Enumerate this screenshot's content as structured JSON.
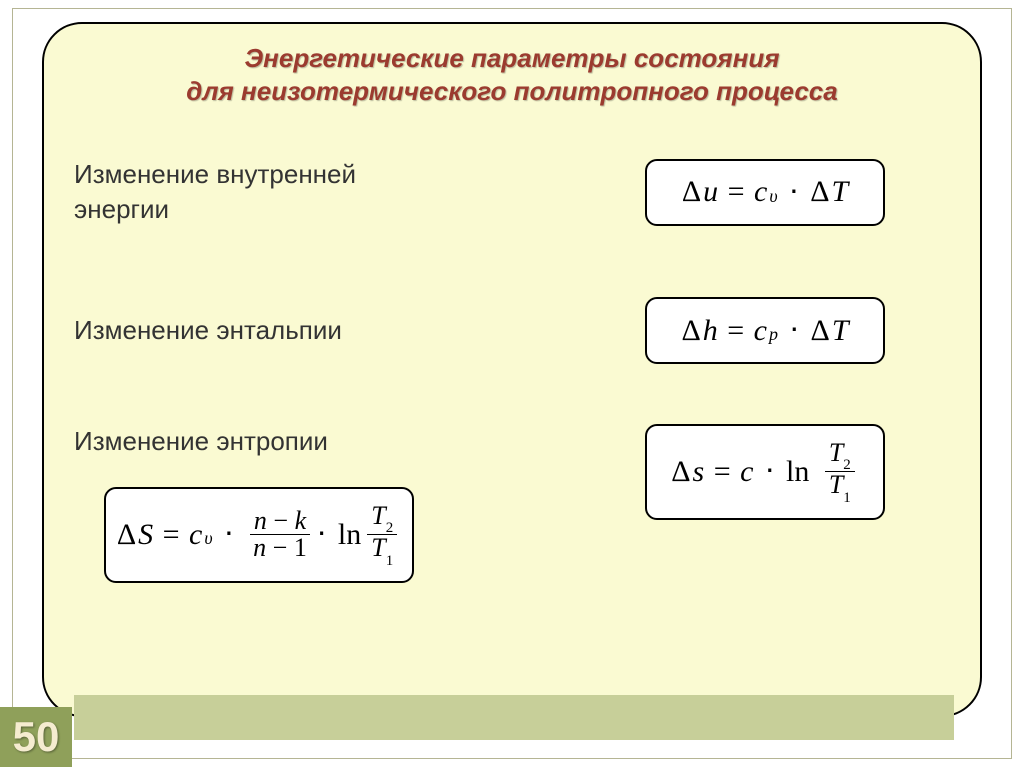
{
  "colors": {
    "card_bg": "#fafad2",
    "card_border": "#000000",
    "title_color": "#9b3b2f",
    "text_color": "#333333",
    "box_bg": "#ffffff",
    "box_border": "#000000",
    "strip_bg": "#c7cf99",
    "badge_bg": "#8fa05a",
    "badge_text": "#f5ecd0"
  },
  "title": {
    "line1": "Энергетические параметры состояния",
    "line2": "для неизотермического политропного процесса",
    "fontsize": 26
  },
  "labels": {
    "internal_energy": "Изменение внутренней энергии",
    "enthalpy": "Изменение энтальпии",
    "entropy": "Изменение энтропии",
    "fontsize": 26
  },
  "formulas": {
    "delta_u": {
      "lhs": "Δu",
      "rhs": "c_υ · ΔT",
      "display": "Δu = c_υ · ΔT"
    },
    "delta_h": {
      "lhs": "Δh",
      "rhs": "c_p · ΔT",
      "display": "Δh = c_p · ΔT"
    },
    "delta_s_c": {
      "lhs": "Δs",
      "rhs": "c · ln(T2/T1)",
      "display": "Δs = c · ln (T₂ / T₁)"
    },
    "delta_s_full": {
      "lhs": "ΔS",
      "rhs": "c_υ · (n−k)/(n−1) · ln(T2/T1)",
      "display": "ΔS = c_υ · (n−k)/(n−1) · ln (T₂ / T₁)"
    },
    "math_fontsize": 30
  },
  "symbols": {
    "Delta": "Δ",
    "dot": "⋅",
    "upsilon": "υ",
    "minus": "−",
    "ln": "ln"
  },
  "page_number": "50"
}
